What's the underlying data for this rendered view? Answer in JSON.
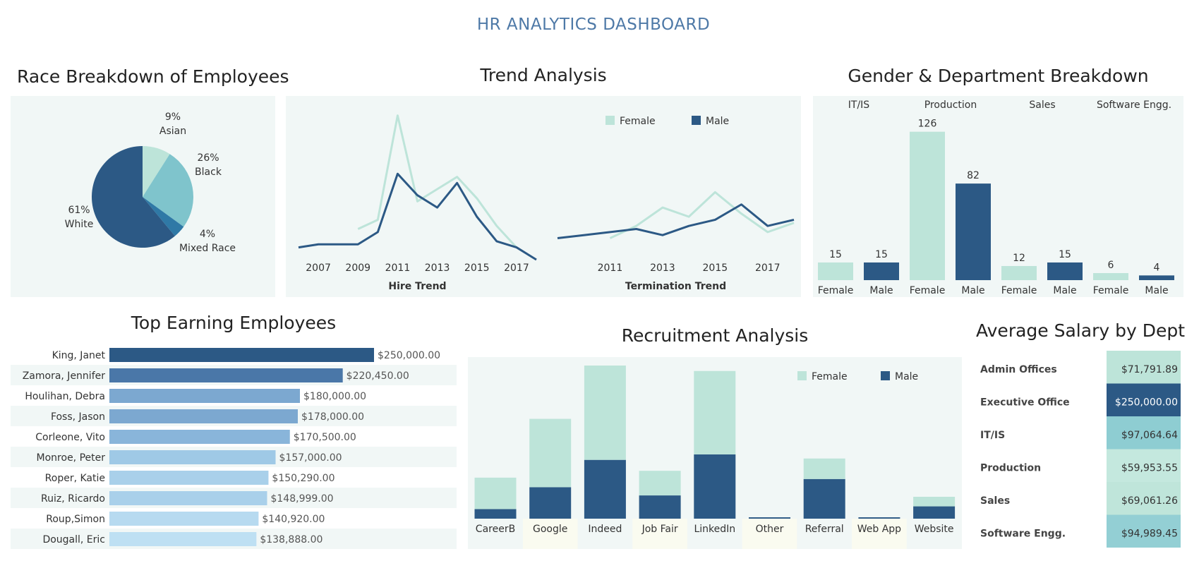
{
  "dashboard": {
    "title": "HR ANALYTICS DASHBOARD"
  },
  "colors": {
    "female": "#bde4d9",
    "male": "#2c5985",
    "mid": "#7fc4cc",
    "dark": "#23507d",
    "bg": "#f1f7f6",
    "title": "#4e79a7"
  },
  "chart_data": [
    {
      "id": "race",
      "type": "pie",
      "title": "Race Breakdown of Employees",
      "slices": [
        {
          "label": "Asian",
          "value": 9,
          "value_label": "9%",
          "color": "#bde4d9"
        },
        {
          "label": "Black",
          "value": 26,
          "value_label": "26%",
          "color": "#7fc4cc"
        },
        {
          "label": "Mixed Race",
          "value": 4,
          "value_label": "4%",
          "color": "#2f79a6"
        },
        {
          "label": "White",
          "value": 61,
          "value_label": "61%",
          "color": "#2c5985"
        }
      ]
    },
    {
      "id": "trend",
      "type": "line",
      "title": "Trend Analysis",
      "legend": [
        "Female",
        "Male"
      ],
      "panels": [
        {
          "xlabel": "Hire Trend",
          "x": [
            2006,
            2007,
            2008,
            2009,
            2010,
            2011,
            2012,
            2013,
            2014,
            2015,
            2016,
            2017,
            2018
          ],
          "ticks": [
            2007,
            2009,
            2011,
            2013,
            2015,
            2017
          ],
          "series": [
            {
              "name": "Female",
              "values": [
                null,
                null,
                null,
                3,
                6,
                40,
                12,
                16,
                20,
                13,
                4,
                -3,
                null
              ]
            },
            {
              "name": "Male",
              "values": [
                -3,
                -2,
                -2,
                -2,
                2,
                21,
                14,
                10,
                18,
                7,
                -1,
                -3,
                -7
              ]
            }
          ]
        },
        {
          "xlabel": "Termination Trend",
          "x": [
            2009,
            2010,
            2011,
            2012,
            2013,
            2014,
            2015,
            2016,
            2017,
            2018
          ],
          "ticks": [
            2011,
            2013,
            2015,
            2017
          ],
          "series": [
            {
              "name": "Female",
              "values": [
                null,
                null,
                0,
                4,
                10,
                7,
                15,
                8,
                2,
                5
              ]
            },
            {
              "name": "Male",
              "values": [
                0,
                1,
                2,
                3,
                1,
                4,
                6,
                11,
                4,
                6
              ]
            }
          ]
        }
      ],
      "ylim": [
        -10,
        45
      ]
    },
    {
      "id": "gender_dept",
      "type": "bar",
      "title": "Gender & Department Breakdown",
      "departments": [
        "IT/IS",
        "Production",
        "Sales",
        "Software Engg."
      ],
      "categories": [
        "Female",
        "Male"
      ],
      "values": [
        [
          15,
          15
        ],
        [
          126,
          82
        ],
        [
          12,
          15
        ],
        [
          6,
          4
        ]
      ],
      "ylim": [
        0,
        130
      ]
    },
    {
      "id": "top_earners",
      "type": "bar",
      "title": "Top Earning Employees",
      "orientation": "horizontal",
      "categories": [
        "King, Janet",
        "Zamora, Jennifer",
        "Houlihan, Debra",
        "Foss, Jason",
        "Corleone, Vito",
        "Monroe, Peter",
        "Roper, Katie",
        "Ruiz, Ricardo",
        "Roup,Simon",
        "Dougall, Eric"
      ],
      "values": [
        250000,
        220450,
        180000,
        178000,
        170500,
        157000,
        150290,
        148999,
        140920,
        138888
      ],
      "value_labels": [
        "$250,000.00",
        "$220,450.00",
        "$180,000.00",
        "$178,000.00",
        "$170,500.00",
        "$157,000.00",
        "$150,290.00",
        "$148,999.00",
        "$140,920.00",
        "$138,888.00"
      ],
      "colors": [
        "#2c5985",
        "#4a77a8",
        "#7ca8d0",
        "#7ca8d0",
        "#89b5da",
        "#9fc9e6",
        "#a9d0ea",
        "#a9d0ea",
        "#b7daf0",
        "#bee0f3"
      ],
      "xlim": [
        0,
        250000
      ]
    },
    {
      "id": "recruitment",
      "type": "bar",
      "title": "Recruitment Analysis",
      "stacked": true,
      "legend": [
        "Female",
        "Male"
      ],
      "categories": [
        "CareerB",
        "Google",
        "Indeed",
        "Job Fair",
        "LinkedIn",
        "Other",
        "Referral",
        "Web App",
        "Website"
      ],
      "series": [
        {
          "name": "Male",
          "values": [
            7,
            23,
            43,
            17,
            47,
            1,
            29,
            1,
            9
          ]
        },
        {
          "name": "Female",
          "values": [
            23,
            50,
            69,
            18,
            61,
            0,
            15,
            0,
            7
          ]
        }
      ],
      "ylim": [
        0,
        112
      ]
    },
    {
      "id": "avg_salary",
      "type": "table",
      "title": "Average Salary by Dept",
      "rows": [
        {
          "dept": "Admin Offices",
          "value": 71791.89,
          "label": "$71,791.89",
          "color": "#bde4d9",
          "text_color": "#333333"
        },
        {
          "dept": "Executive Office",
          "value": 250000,
          "label": "$250,000.00",
          "color": "#2c5985",
          "text_color": "#ffffff"
        },
        {
          "dept": "IT/IS",
          "value": 97064.64,
          "label": "$97,064.64",
          "color": "#8ecdd2",
          "text_color": "#333333"
        },
        {
          "dept": "Production",
          "value": 59953.55,
          "label": "$59,953.55",
          "color": "#c4e8de",
          "text_color": "#333333"
        },
        {
          "dept": "Sales",
          "value": 69061.26,
          "label": "$69,061.26",
          "color": "#bfe5da",
          "text_color": "#333333"
        },
        {
          "dept": "Software Engg.",
          "value": 94989.45,
          "label": "$94,989.45",
          "color": "#93cfd4",
          "text_color": "#333333"
        }
      ]
    }
  ]
}
